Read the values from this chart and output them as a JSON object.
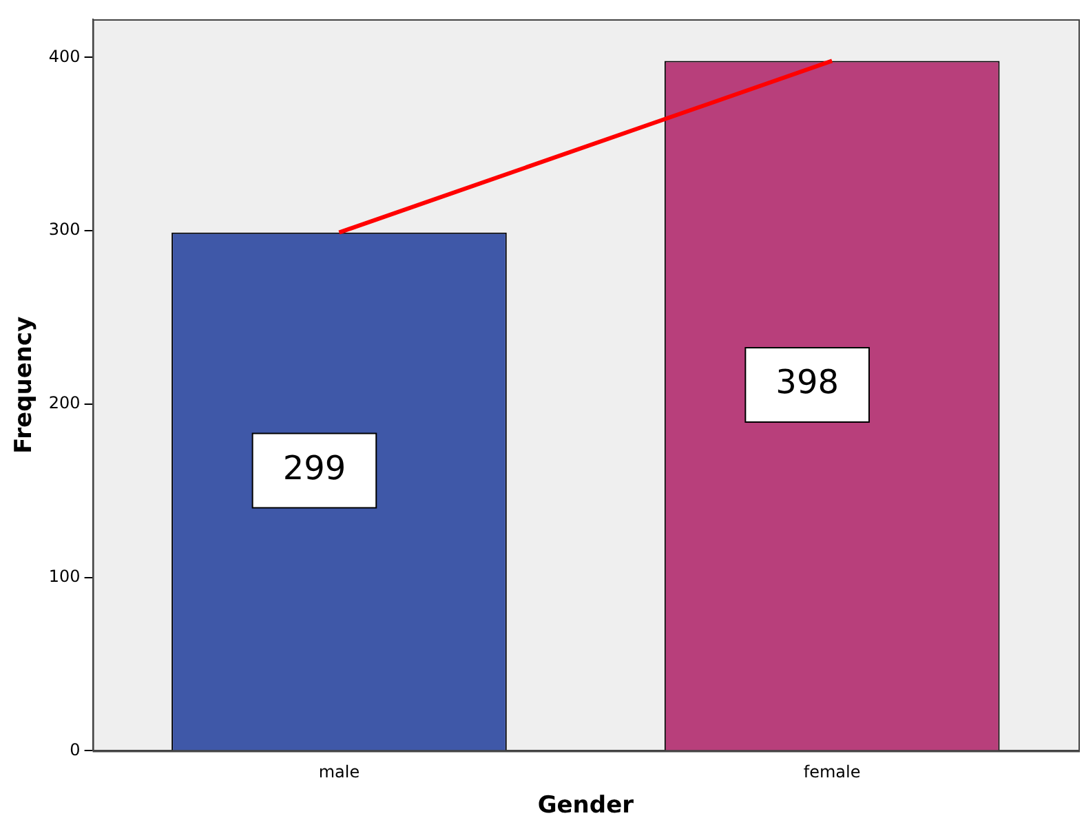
{
  "chart_data": {
    "type": "bar",
    "xlabel": "Gender",
    "ylabel": "Frequency",
    "categories": [
      "male",
      "female"
    ],
    "series": [
      {
        "colors": [
          "#3f58a8",
          "#b83f7b"
        ],
        "values": [
          299,
          398
        ],
        "value_labels": [
          "299",
          "398"
        ]
      },
      {
        "type": "line",
        "color": "#ff0000",
        "values": [
          299,
          398
        ]
      }
    ],
    "ylim": [
      0,
      422
    ],
    "yticks": [
      0,
      100,
      200,
      300,
      400
    ],
    "grid": false,
    "legend": false,
    "marker": "none"
  }
}
